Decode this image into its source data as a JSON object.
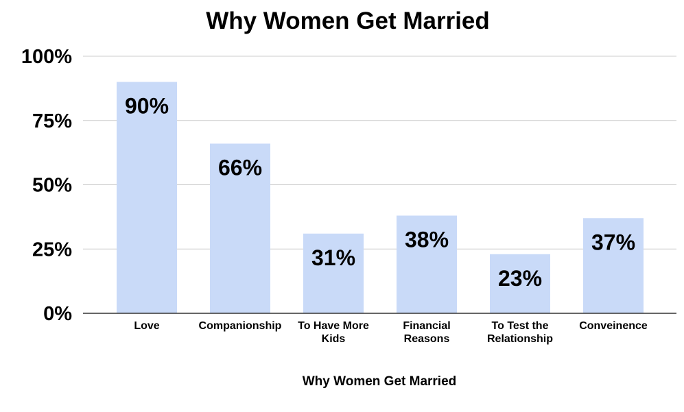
{
  "chart_data": {
    "type": "bar",
    "title": "Why Women Get Married",
    "xlabel": "Why Women Get Married",
    "ylabel": "",
    "categories": [
      "Love",
      "Companionship",
      "To Have More Kids",
      "Financial Reasons",
      "To Test the Relationship",
      "Conveinence"
    ],
    "category_lines": [
      [
        "Love"
      ],
      [
        "Companionship"
      ],
      [
        "To Have More",
        "Kids"
      ],
      [
        "Financial",
        "Reasons"
      ],
      [
        "To Test the",
        "Relationship"
      ],
      [
        "Conveinence"
      ]
    ],
    "values": [
      90,
      66,
      31,
      38,
      23,
      37
    ],
    "data_labels": [
      "90%",
      "66%",
      "31%",
      "38%",
      "23%",
      "37%"
    ],
    "ylim": [
      0,
      100
    ],
    "yticks": [
      0,
      25,
      50,
      75,
      100
    ],
    "ytick_labels": [
      "0%",
      "25%",
      "50%",
      "75%",
      "100%"
    ],
    "grid": true,
    "legend": "none",
    "colors": {
      "bar": "#c9daf8",
      "grid": "#cccccc",
      "axis": "#333333"
    }
  }
}
